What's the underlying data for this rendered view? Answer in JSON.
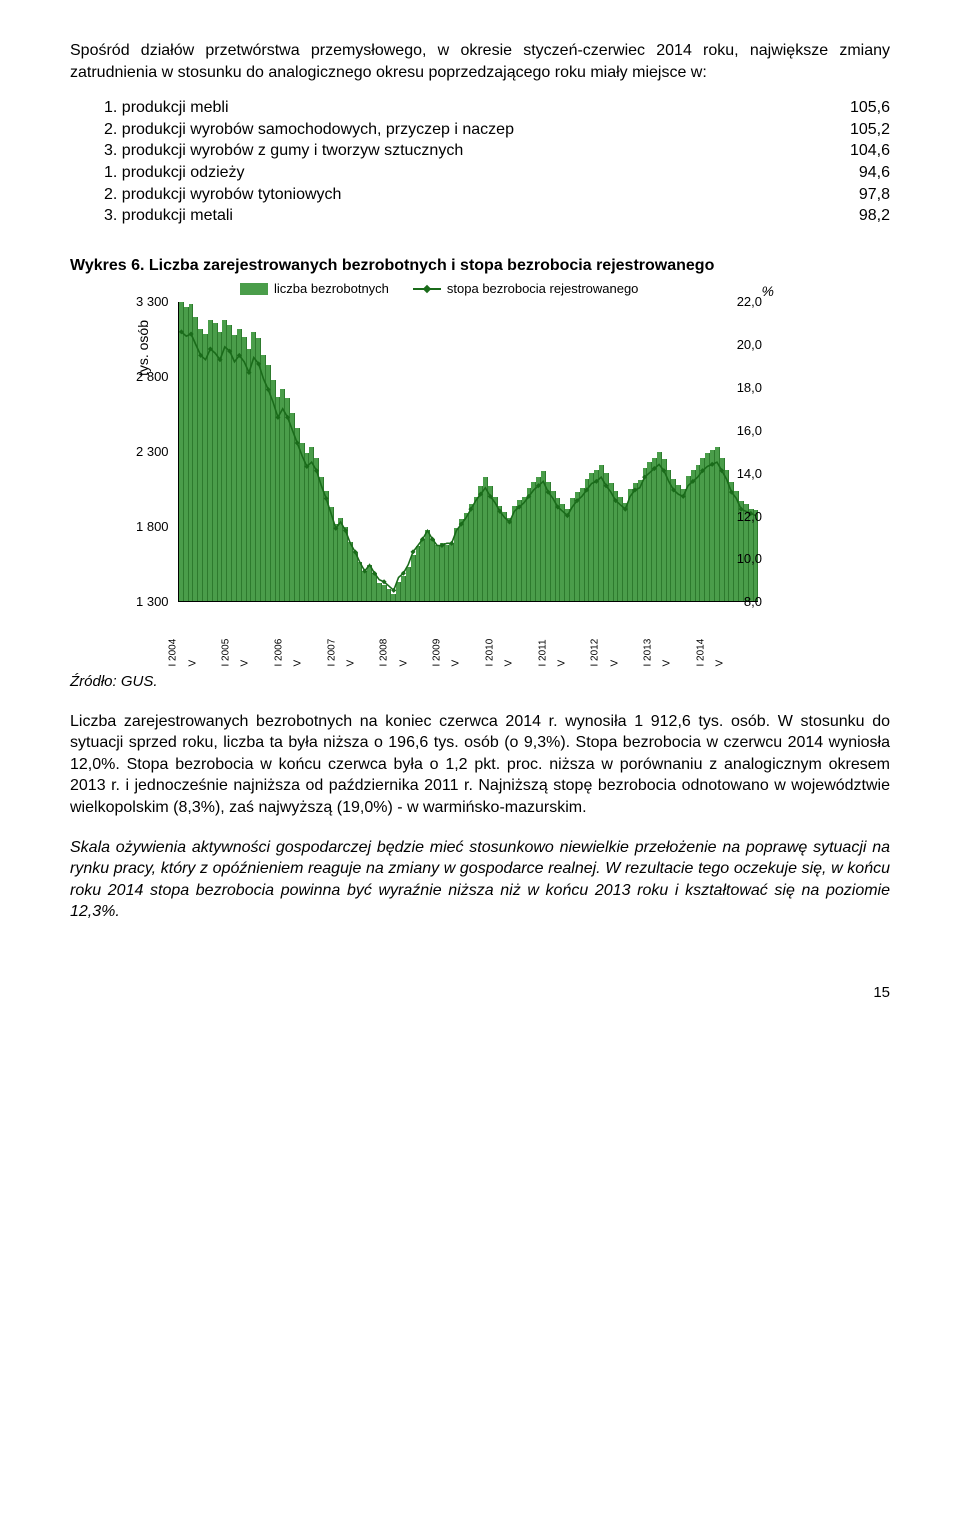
{
  "intro": "Spośród działów przetwórstwa przemysłowego, w okresie styczeń-czerwiec 2014 roku, największe zmiany zatrudnienia w stosunku do analogicznego okresu poprzedzającego roku miały miejsce w:",
  "list": [
    {
      "n": "1.",
      "t": "produkcji mebli",
      "v": "105,6"
    },
    {
      "n": "2.",
      "t": "produkcji wyrobów samochodowych, przyczep i naczep",
      "v": "105,2"
    },
    {
      "n": "3.",
      "t": "produkcji wyrobów z gumy i tworzyw sztucznych",
      "v": "104,6"
    },
    {
      "n": "1.",
      "t": "produkcji odzieży",
      "v": "94,6"
    },
    {
      "n": "2.",
      "t": "produkcji wyrobów tytoniowych",
      "v": "97,8"
    },
    {
      "n": "3.",
      "t": "produkcji metali",
      "v": "98,2"
    }
  ],
  "chart": {
    "title": "Wykres 6. Liczba zarejestrowanych bezrobotnych i stopa bezrobocia rejestrowanego",
    "ylabel_left": "tys. osób",
    "pct_label": "%",
    "legend_bars": "liczba bezrobotnych",
    "legend_line": "stopa bezrobocia rejestrowanego",
    "left_axis": {
      "min": 1300,
      "max": 3300,
      "ticks": [
        "3 300",
        "2 800",
        "2 300",
        "1 800",
        "1 300"
      ]
    },
    "right_axis": {
      "min": 8.0,
      "max": 22.0,
      "ticks": [
        "22,0",
        "20,0",
        "18,0",
        "16,0",
        "14,0",
        "12,0",
        "10,0",
        "8,0"
      ]
    },
    "bar_color": "#4a9d4a",
    "line_color": "#1a6b1a",
    "grid_color": "#e8e8e8",
    "bg": "#ffffff",
    "years": [
      "I 2004",
      "I 2005",
      "I 2006",
      "I 2007",
      "I 2008",
      "I 2009",
      "I 2010",
      "I 2011",
      "I 2012",
      "I 2013",
      "I 2014"
    ],
    "subticks": [
      "V",
      ""
    ],
    "bars_thousands": [
      3300,
      3270,
      3290,
      3200,
      3120,
      3090,
      3180,
      3160,
      3100,
      3180,
      3150,
      3080,
      3120,
      3070,
      2990,
      3100,
      3060,
      2950,
      2880,
      2780,
      2670,
      2720,
      2660,
      2560,
      2460,
      2360,
      2290,
      2330,
      2260,
      2130,
      2040,
      1930,
      1820,
      1860,
      1800,
      1700,
      1630,
      1560,
      1500,
      1540,
      1490,
      1420,
      1410,
      1380,
      1350,
      1430,
      1470,
      1530,
      1610,
      1670,
      1720,
      1780,
      1720,
      1680,
      1690,
      1680,
      1690,
      1790,
      1850,
      1890,
      1950,
      2000,
      2070,
      2130,
      2070,
      2000,
      1940,
      1900,
      1860,
      1940,
      1980,
      2000,
      2060,
      2100,
      2130,
      2170,
      2100,
      2040,
      1990,
      1950,
      1920,
      1990,
      2030,
      2060,
      2120,
      2160,
      2180,
      2210,
      2160,
      2090,
      2040,
      2000,
      1960,
      2050,
      2090,
      2110,
      2190,
      2230,
      2260,
      2300,
      2250,
      2180,
      2120,
      2080,
      2050,
      2140,
      2180,
      2210,
      2260,
      2290,
      2310,
      2330,
      2260,
      2180,
      2100,
      2040,
      1970,
      1950,
      1920,
      1913
    ],
    "rate_pct": [
      20.6,
      20.4,
      20.5,
      20.0,
      19.5,
      19.3,
      19.8,
      19.6,
      19.3,
      19.9,
      19.7,
      19.2,
      19.5,
      19.2,
      18.7,
      19.4,
      19.1,
      18.4,
      17.9,
      17.3,
      16.6,
      17.0,
      16.6,
      16.0,
      15.4,
      14.8,
      14.3,
      14.5,
      14.1,
      13.4,
      12.8,
      12.1,
      11.4,
      11.7,
      11.3,
      10.7,
      10.3,
      9.8,
      9.4,
      9.7,
      9.3,
      9.0,
      8.9,
      8.7,
      8.5,
      9.1,
      9.3,
      9.7,
      10.3,
      10.6,
      10.9,
      11.3,
      10.9,
      10.6,
      10.6,
      10.7,
      10.7,
      11.3,
      11.6,
      11.9,
      12.3,
      12.7,
      13.0,
      13.3,
      12.9,
      12.6,
      12.2,
      11.9,
      11.7,
      12.2,
      12.4,
      12.6,
      12.9,
      13.2,
      13.4,
      13.6,
      13.1,
      12.8,
      12.4,
      12.2,
      12.0,
      12.4,
      12.7,
      12.9,
      13.2,
      13.5,
      13.6,
      13.8,
      13.4,
      13.1,
      12.7,
      12.5,
      12.3,
      12.9,
      13.2,
      13.3,
      13.8,
      14.0,
      14.2,
      14.4,
      14.1,
      13.6,
      13.2,
      13.0,
      12.9,
      13.4,
      13.6,
      13.8,
      14.1,
      14.3,
      14.4,
      14.5,
      14.1,
      13.7,
      13.1,
      12.8,
      12.3,
      12.2,
      12.1,
      12.0
    ]
  },
  "source": "Źródło: GUS.",
  "para2": "Liczba zarejestrowanych bezrobotnych na koniec czerwca 2014 r. wynosiła 1 912,6 tys. osób. W stosunku do sytuacji sprzed roku, liczba ta była niższa o 196,6 tys. osób (o 9,3%). Stopa bezrobocia w czerwcu 2014 wyniosła 12,0%. Stopa bezrobocia w końcu czerwca była o 1,2 pkt. proc. niższa w porównaniu z analogicznym okresem 2013 r. i jednocześnie najniższa od października 2011 r. Najniższą stopę bezrobocia odnotowano w województwie wielkopolskim (8,3%), zaś najwyższą (19,0%) - w warmińsko-mazurskim.",
  "para3": "Skala ożywienia aktywności gospodarczej będzie mieć stosunkowo niewielkie przełożenie na poprawę sytuacji na rynku pracy, który z opóźnieniem reaguje na zmiany w gospodarce realnej. W rezultacie tego oczekuje się, w końcu roku 2014 stopa bezrobocia powinna być wyraźnie niższa niż w końcu 2013 roku i kształtować się na poziomie 12,3%.",
  "page": "15"
}
